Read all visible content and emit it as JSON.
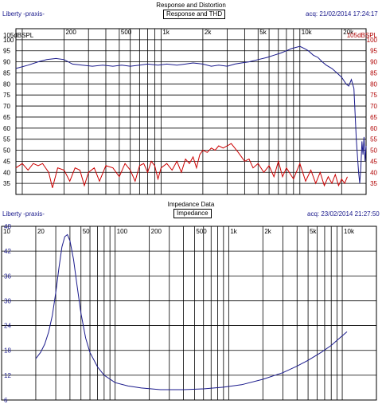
{
  "charts": [
    {
      "title": "Response and Distortion",
      "tab_label": "Response and THD",
      "source_label": "Liberty -praxis-",
      "acq_label": "acq: 21/02/2014 17:24:17",
      "top_left_label": "105dBSPL",
      "top_right_label": "105dBSPL"
    },
    {
      "title": "Impedance Data",
      "tab_label": "Impedance",
      "source_label": "Liberty -praxis-",
      "acq_label": "acq: 23/02/2014 21:27:50"
    }
  ],
  "chart_data": [
    {
      "type": "line",
      "title": "Response and Distortion",
      "x_scale": "log",
      "xlim": [
        90,
        30000
      ],
      "ylim": [
        30,
        105
      ],
      "x_ticks": [
        200,
        500,
        1000,
        2000,
        5000,
        10000,
        20000
      ],
      "x_tick_labels": [
        "200",
        "500",
        "1k",
        "2k",
        "5k",
        "10k",
        "20k"
      ],
      "y_ticks": [
        35,
        40,
        45,
        50,
        55,
        60,
        65,
        70,
        75,
        80,
        85,
        90,
        95,
        100
      ],
      "y_tick_labels": [
        "35",
        "40",
        "45",
        "50",
        "55",
        "60",
        "65",
        "70",
        "75",
        "80",
        "85",
        "90",
        "95",
        "100"
      ],
      "grid": true,
      "series": [
        {
          "color": "#1a1a8c",
          "points": [
            [
              90,
              87
            ],
            [
              110,
              88.5
            ],
            [
              130,
              90
            ],
            [
              150,
              91
            ],
            [
              175,
              91.5
            ],
            [
              200,
              91
            ],
            [
              230,
              89
            ],
            [
              270,
              88.5
            ],
            [
              320,
              88
            ],
            [
              380,
              88.5
            ],
            [
              450,
              88
            ],
            [
              520,
              88.5
            ],
            [
              600,
              88
            ],
            [
              700,
              88.5
            ],
            [
              800,
              89
            ],
            [
              950,
              88.5
            ],
            [
              1100,
              89
            ],
            [
              1300,
              88.5
            ],
            [
              1500,
              89
            ],
            [
              1700,
              89.5
            ],
            [
              2000,
              89
            ],
            [
              2300,
              88
            ],
            [
              2600,
              88.5
            ],
            [
              3000,
              88
            ],
            [
              3400,
              89
            ],
            [
              3800,
              89.5
            ],
            [
              4300,
              90
            ],
            [
              5000,
              91
            ],
            [
              5800,
              92
            ],
            [
              6500,
              93
            ],
            [
              7300,
              94
            ],
            [
              8000,
              95
            ],
            [
              8700,
              96
            ],
            [
              9300,
              96.5
            ],
            [
              10000,
              97
            ],
            [
              10800,
              96
            ],
            [
              11500,
              95
            ],
            [
              12500,
              93
            ],
            [
              13500,
              92
            ],
            [
              14500,
              90
            ],
            [
              15500,
              88.5
            ],
            [
              17000,
              87
            ],
            [
              18500,
              85
            ],
            [
              20000,
              83
            ],
            [
              21500,
              80
            ],
            [
              22500,
              79
            ],
            [
              23500,
              82
            ],
            [
              24500,
              78
            ],
            [
              25500,
              55
            ],
            [
              26500,
              40
            ],
            [
              27000,
              35
            ],
            [
              27500,
              42
            ],
            [
              28000,
              54
            ],
            [
              28500,
              48
            ],
            [
              29000,
              56
            ],
            [
              29500,
              45
            ],
            [
              30000,
              52
            ]
          ]
        },
        {
          "color": "#cc0000",
          "points": [
            [
              90,
              42
            ],
            [
              100,
              44
            ],
            [
              110,
              41
            ],
            [
              120,
              44
            ],
            [
              130,
              43
            ],
            [
              140,
              44
            ],
            [
              155,
              40
            ],
            [
              165,
              33
            ],
            [
              180,
              42
            ],
            [
              200,
              41
            ],
            [
              220,
              36
            ],
            [
              240,
              42
            ],
            [
              260,
              41
            ],
            [
              280,
              34
            ],
            [
              300,
              40
            ],
            [
              330,
              42
            ],
            [
              360,
              36
            ],
            [
              400,
              43
            ],
            [
              450,
              42
            ],
            [
              500,
              38
            ],
            [
              550,
              44
            ],
            [
              600,
              41
            ],
            [
              650,
              36
            ],
            [
              700,
              43
            ],
            [
              750,
              44
            ],
            [
              800,
              40
            ],
            [
              850,
              45
            ],
            [
              900,
              43
            ],
            [
              950,
              37
            ],
            [
              1000,
              42
            ],
            [
              1100,
              44
            ],
            [
              1200,
              41
            ],
            [
              1300,
              45
            ],
            [
              1400,
              40
            ],
            [
              1500,
              46
            ],
            [
              1600,
              44
            ],
            [
              1700,
              47
            ],
            [
              1800,
              42
            ],
            [
              1900,
              48
            ],
            [
              2000,
              50
            ],
            [
              2150,
              49
            ],
            [
              2300,
              51
            ],
            [
              2450,
              50
            ],
            [
              2600,
              52
            ],
            [
              2800,
              51
            ],
            [
              3000,
              52
            ],
            [
              3200,
              53
            ],
            [
              3400,
              51
            ],
            [
              3600,
              49
            ],
            [
              3800,
              47
            ],
            [
              4000,
              45
            ],
            [
              4300,
              46
            ],
            [
              4600,
              42
            ],
            [
              5000,
              44
            ],
            [
              5500,
              40
            ],
            [
              6000,
              43
            ],
            [
              6500,
              38
            ],
            [
              7000,
              45
            ],
            [
              7500,
              38
            ],
            [
              8000,
              42
            ],
            [
              9000,
              37
            ],
            [
              10000,
              44
            ],
            [
              11000,
              36
            ],
            [
              12000,
              41
            ],
            [
              13000,
              35
            ],
            [
              14000,
              40
            ],
            [
              15000,
              34
            ],
            [
              16000,
              38
            ],
            [
              17000,
              35
            ],
            [
              18000,
              39
            ],
            [
              19000,
              34
            ],
            [
              20000,
              37
            ],
            [
              21000,
              35
            ],
            [
              22000,
              38
            ]
          ]
        }
      ]
    },
    {
      "type": "line",
      "title": "Impedance Data",
      "x_scale": "log",
      "xlim": [
        10,
        20000
      ],
      "ylim": [
        6,
        48
      ],
      "x_ticks": [
        10,
        20,
        50,
        100,
        200,
        500,
        1000,
        2000,
        5000,
        10000
      ],
      "x_tick_labels": [
        "10",
        "20",
        "50",
        "100",
        "200",
        "500",
        "1k",
        "2k",
        "5k",
        "10k"
      ],
      "y_ticks": [
        6,
        12,
        18,
        24,
        30,
        36,
        42,
        48
      ],
      "y_tick_labels": [
        "6",
        "12",
        "18",
        "24",
        "30",
        "36",
        "42",
        "48"
      ],
      "grid": true,
      "series": [
        {
          "color": "#1a1a8c",
          "points": [
            [
              20,
              16
            ],
            [
              22,
              17.5
            ],
            [
              24,
              19.5
            ],
            [
              26,
              22.5
            ],
            [
              28,
              26.5
            ],
            [
              30,
              32
            ],
            [
              32,
              38
            ],
            [
              34,
              43
            ],
            [
              36,
              45.5
            ],
            [
              38,
              46
            ],
            [
              40,
              44.5
            ],
            [
              43,
              40
            ],
            [
              46,
              34
            ],
            [
              50,
              27
            ],
            [
              55,
              21
            ],
            [
              60,
              17.5
            ],
            [
              70,
              14
            ],
            [
              80,
              12
            ],
            [
              100,
              10.2
            ],
            [
              130,
              9.4
            ],
            [
              170,
              8.9
            ],
            [
              250,
              8.5
            ],
            [
              400,
              8.5
            ],
            [
              600,
              8.7
            ],
            [
              900,
              9.1
            ],
            [
              1300,
              9.7
            ],
            [
              2000,
              11
            ],
            [
              3000,
              12.6
            ],
            [
              4000,
              14.2
            ],
            [
              5000,
              15.6
            ],
            [
              6500,
              17.5
            ],
            [
              8000,
              19.2
            ],
            [
              9500,
              21
            ],
            [
              11000,
              22.5
            ]
          ]
        }
      ]
    }
  ]
}
